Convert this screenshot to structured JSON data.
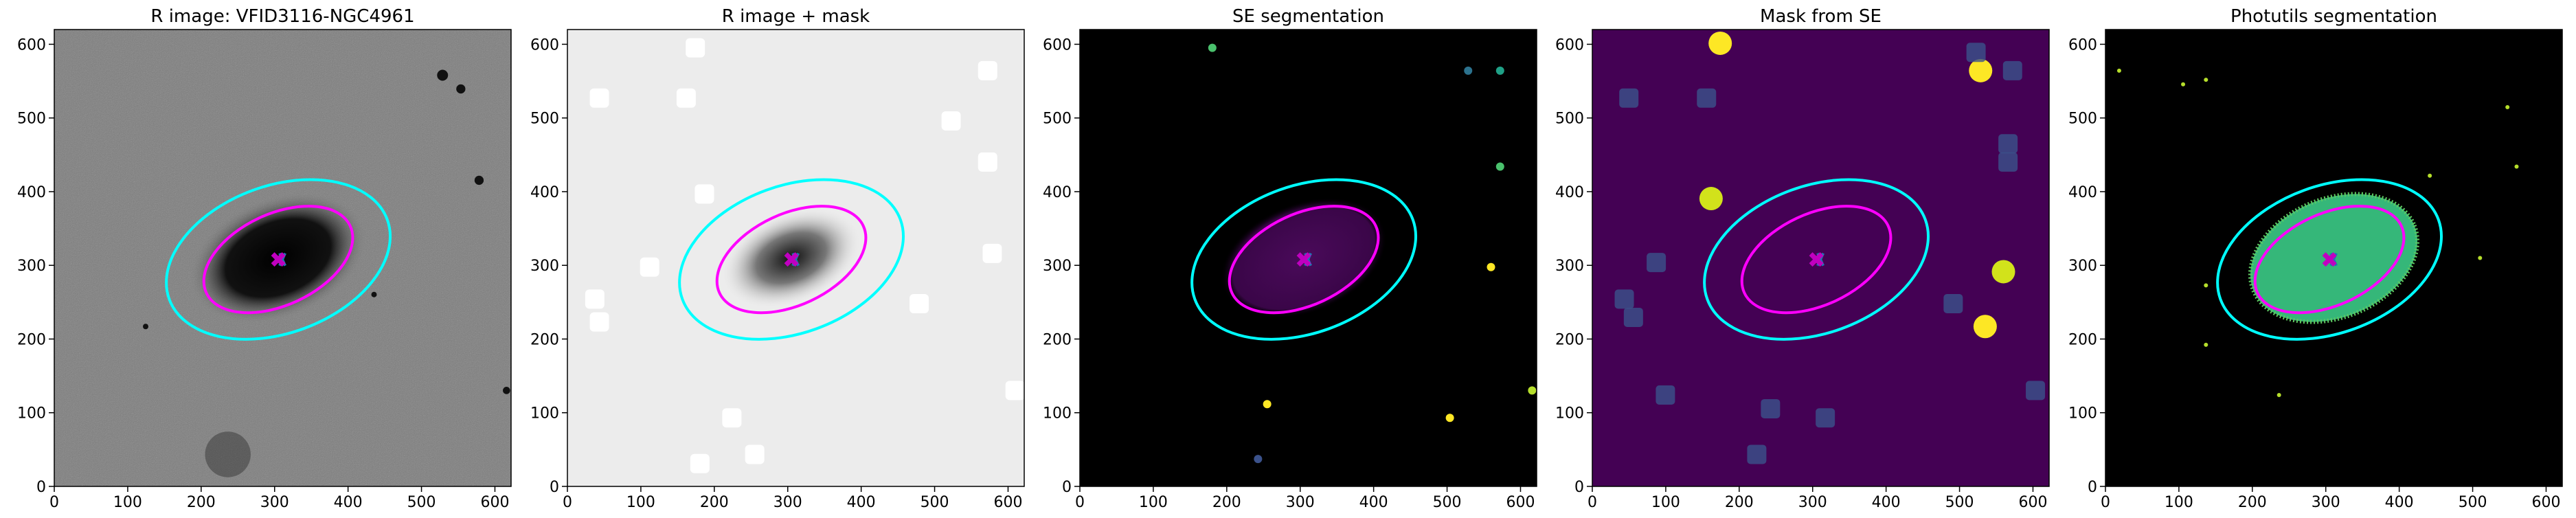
{
  "chart_data": [
    {
      "type": "image",
      "title": "R image: VFID3116-NGC4961",
      "background": "#7c7c7c",
      "xlim": [
        0,
        622
      ],
      "ylim": [
        0,
        620
      ],
      "xticks": [
        0,
        100,
        200,
        300,
        400,
        500,
        600
      ],
      "yticks": [
        0,
        100,
        200,
        300,
        400,
        500,
        600
      ],
      "ellipses": [
        {
          "cx": 305,
          "cy": 308,
          "a": 158,
          "b": 100,
          "angle": 20,
          "color": "#00ffff"
        },
        {
          "cx": 305,
          "cy": 308,
          "a": 108,
          "b": 62,
          "angle": 25,
          "color": "#ff00ff"
        }
      ],
      "marker": [
        305,
        308
      ]
    },
    {
      "type": "image",
      "title": "R image + mask",
      "background": "#ececec",
      "xlim": [
        0,
        622
      ],
      "ylim": [
        0,
        620
      ],
      "xticks": [
        0,
        100,
        200,
        300,
        400,
        500,
        600
      ],
      "yticks": [
        0,
        100,
        200,
        300,
        400,
        500,
        600
      ],
      "ellipses": [
        {
          "cx": 305,
          "cy": 308,
          "a": 158,
          "b": 100,
          "angle": 20,
          "color": "#00ffff"
        },
        {
          "cx": 305,
          "cy": 308,
          "a": 108,
          "b": 62,
          "angle": 25,
          "color": "#ff00ff"
        }
      ],
      "marker": [
        305,
        308
      ]
    },
    {
      "type": "image",
      "title": "SE segmentation",
      "background": "#000000",
      "xlim": [
        0,
        622
      ],
      "ylim": [
        0,
        620
      ],
      "xticks": [
        0,
        100,
        200,
        300,
        400,
        500,
        600
      ],
      "yticks": [
        0,
        100,
        200,
        300,
        400,
        500,
        600
      ],
      "ellipses": [
        {
          "cx": 305,
          "cy": 308,
          "a": 158,
          "b": 100,
          "angle": 20,
          "color": "#00ffff"
        },
        {
          "cx": 305,
          "cy": 308,
          "a": 108,
          "b": 62,
          "angle": 25,
          "color": "#ff00ff"
        }
      ],
      "marker": [
        305,
        308
      ]
    },
    {
      "type": "image",
      "title": "Mask from SE",
      "background": "#440154",
      "xlim": [
        0,
        622
      ],
      "ylim": [
        0,
        620
      ],
      "xticks": [
        0,
        100,
        200,
        300,
        400,
        500,
        600
      ],
      "yticks": [
        0,
        100,
        200,
        300,
        400,
        500,
        600
      ],
      "ellipses": [
        {
          "cx": 305,
          "cy": 308,
          "a": 158,
          "b": 100,
          "angle": 20,
          "color": "#00ffff"
        },
        {
          "cx": 305,
          "cy": 308,
          "a": 108,
          "b": 62,
          "angle": 25,
          "color": "#ff00ff"
        }
      ],
      "marker": [
        305,
        308
      ]
    },
    {
      "type": "image",
      "title": "Photutils segmentation",
      "background": "#000000",
      "xlim": [
        0,
        622
      ],
      "ylim": [
        0,
        620
      ],
      "xticks": [
        0,
        100,
        200,
        300,
        400,
        500,
        600
      ],
      "yticks": [
        0,
        100,
        200,
        300,
        400,
        500,
        600
      ],
      "ellipses": [
        {
          "cx": 305,
          "cy": 308,
          "a": 158,
          "b": 100,
          "angle": 20,
          "color": "#00ffff"
        },
        {
          "cx": 305,
          "cy": 308,
          "a": 108,
          "b": 62,
          "angle": 25,
          "color": "#ff00ff"
        }
      ],
      "marker": [
        305,
        308
      ]
    }
  ]
}
